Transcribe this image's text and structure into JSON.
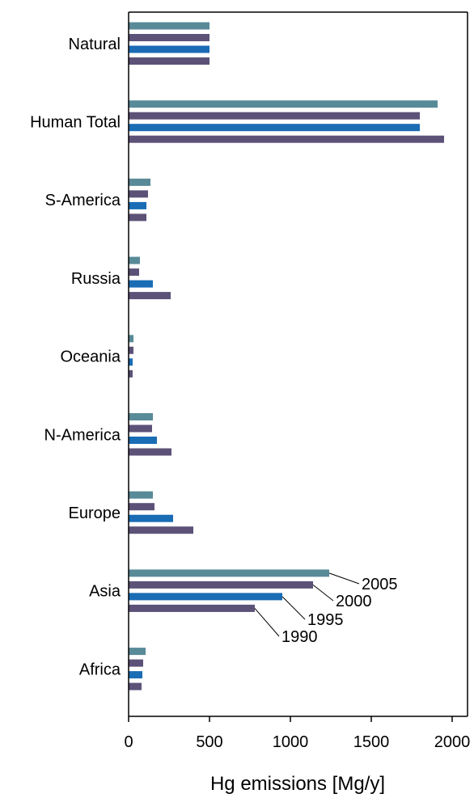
{
  "chart_data": {
    "type": "bar",
    "orientation": "horizontal",
    "xlabel": "Hg emissions [Mg/y]",
    "ylabel": "",
    "xlim": [
      0,
      2100
    ],
    "xticks": [
      0,
      500,
      1000,
      1500,
      2000
    ],
    "grid": false,
    "categories": [
      "Natural",
      "Human Total",
      "S-America",
      "Russia",
      "Oceania",
      "N-America",
      "Europe",
      "Asia",
      "Africa"
    ],
    "series": [
      {
        "name": "2005",
        "color": "#588a98",
        "values": [
          500,
          1910,
          135,
          70,
          30,
          150,
          150,
          1240,
          105
        ]
      },
      {
        "name": "2000",
        "color": "#5c5278",
        "values": [
          500,
          1800,
          120,
          65,
          30,
          145,
          160,
          1140,
          90
        ]
      },
      {
        "name": "1995",
        "color": "#1a6cb4",
        "values": [
          500,
          1800,
          110,
          150,
          25,
          175,
          275,
          950,
          85
        ]
      },
      {
        "name": "1990",
        "color": "#5c5278",
        "values": [
          500,
          1950,
          110,
          260,
          25,
          265,
          400,
          780,
          80
        ]
      }
    ],
    "annotations": {
      "category": "Asia",
      "labels": [
        "2005",
        "2000",
        "1995",
        "1990"
      ]
    }
  }
}
